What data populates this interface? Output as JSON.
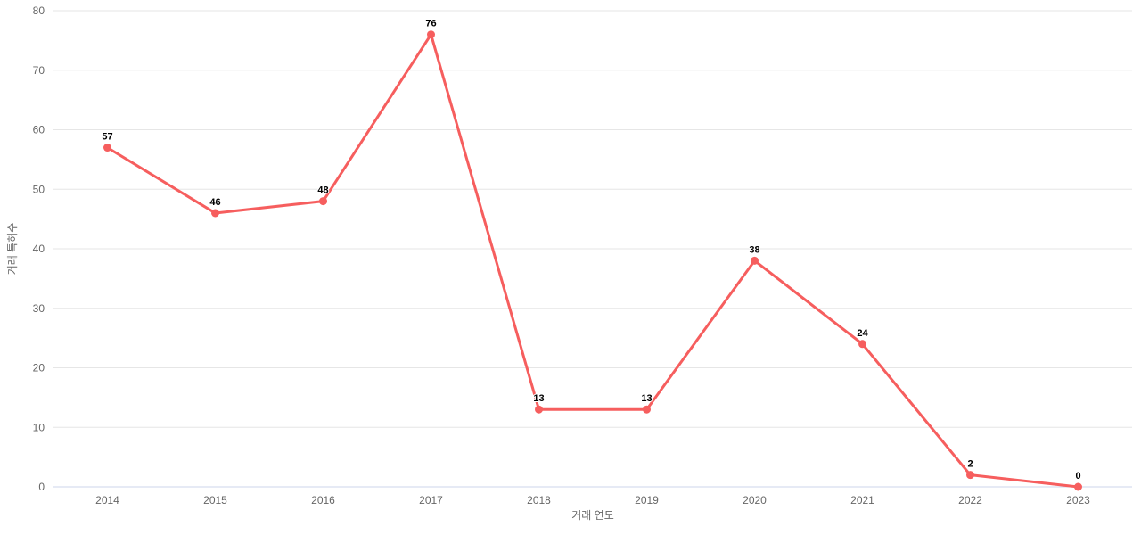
{
  "chart_data": {
    "type": "line",
    "title": "",
    "xlabel": "거래 연도",
    "ylabel": "거래 특허수",
    "categories": [
      "2014",
      "2015",
      "2016",
      "2017",
      "2018",
      "2019",
      "2020",
      "2021",
      "2022",
      "2023"
    ],
    "series": [
      {
        "name": "거래 특허수",
        "values": [
          57,
          46,
          48,
          76,
          13,
          13,
          38,
          24,
          2,
          0
        ]
      }
    ],
    "ylim": [
      0,
      80
    ],
    "y_tick_step": 10,
    "y_tick_labels": [
      "0",
      "10",
      "20",
      "30",
      "40",
      "50",
      "60",
      "70",
      "80"
    ],
    "grid": true,
    "legend_position": "none",
    "colors": {
      "line": "#f65e5e",
      "marker": "#f65e5e",
      "gridline": "#e6e6e6",
      "axis_line": "#ccd6eb",
      "tick_label": "#666666",
      "axis_title": "#666666",
      "data_label": "#000000",
      "background": "#ffffff"
    }
  }
}
